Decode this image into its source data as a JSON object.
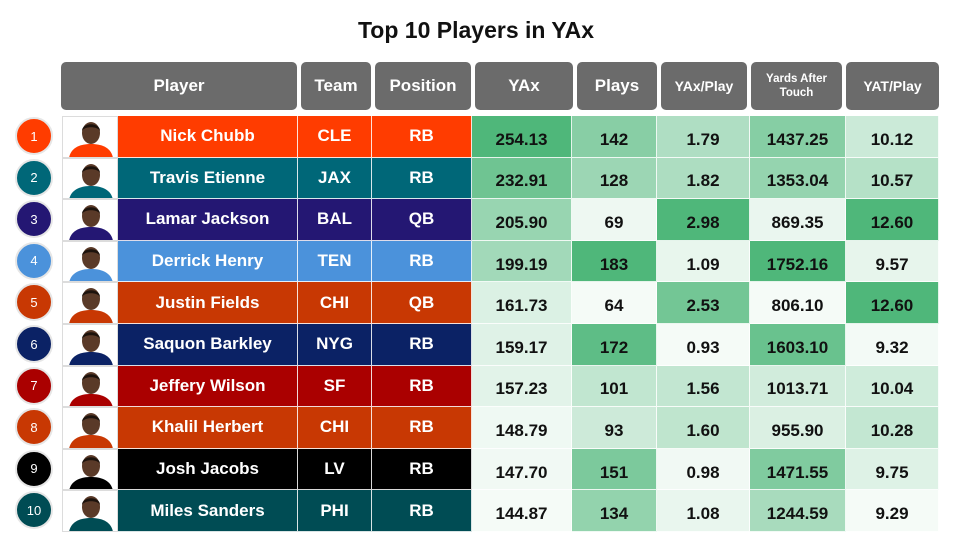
{
  "title": "Top 10 Players in YAx",
  "headers": {
    "player": "Player",
    "team": "Team",
    "position": "Position",
    "yax": "YAx",
    "plays": "Plays",
    "yax_play": "YAx/Play",
    "yat": "Yards After Touch",
    "yat_play": "YAT/Play"
  },
  "colors": {
    "header_bg": "#6b6b6b",
    "heat_low": "#f5fbf7",
    "heat_high": "#4fb77a"
  },
  "chart_data": {
    "type": "table",
    "title": "Top 10 Players in YAx",
    "columns": [
      "Player",
      "Team",
      "Position",
      "YAx",
      "Plays",
      "YAx/Play",
      "Yards After Touch",
      "YAT/Play"
    ],
    "rows": [
      {
        "rank": "1",
        "player": "Nick Chubb",
        "team": "CLE",
        "position": "RB",
        "yax": "254.13",
        "plays": "142",
        "yax_play": "1.79",
        "yat": "1437.25",
        "yat_play": "10.12",
        "team_color": "#ff3c00"
      },
      {
        "rank": "2",
        "player": "Travis Etienne",
        "team": "JAX",
        "position": "RB",
        "yax": "232.91",
        "plays": "128",
        "yax_play": "1.82",
        "yat": "1353.04",
        "yat_play": "10.57",
        "team_color": "#006778"
      },
      {
        "rank": "3",
        "player": "Lamar Jackson",
        "team": "BAL",
        "position": "QB",
        "yax": "205.90",
        "plays": "69",
        "yax_play": "2.98",
        "yat": "869.35",
        "yat_play": "12.60",
        "team_color": "#241773"
      },
      {
        "rank": "4",
        "player": "Derrick Henry",
        "team": "TEN",
        "position": "RB",
        "yax": "199.19",
        "plays": "183",
        "yax_play": "1.09",
        "yat": "1752.16",
        "yat_play": "9.57",
        "team_color": "#4b92db"
      },
      {
        "rank": "5",
        "player": "Justin Fields",
        "team": "CHI",
        "position": "QB",
        "yax": "161.73",
        "plays": "64",
        "yax_play": "2.53",
        "yat": "806.10",
        "yat_play": "12.60",
        "team_color": "#c83803"
      },
      {
        "rank": "6",
        "player": "Saquon Barkley",
        "team": "NYG",
        "position": "RB",
        "yax": "159.17",
        "plays": "172",
        "yax_play": "0.93",
        "yat": "1603.10",
        "yat_play": "9.32",
        "team_color": "#0b2265"
      },
      {
        "rank": "7",
        "player": "Jeffery Wilson",
        "team": "SF",
        "position": "RB",
        "yax": "157.23",
        "plays": "101",
        "yax_play": "1.56",
        "yat": "1013.71",
        "yat_play": "10.04",
        "team_color": "#aa0000"
      },
      {
        "rank": "8",
        "player": "Khalil Herbert",
        "team": "CHI",
        "position": "RB",
        "yax": "148.79",
        "plays": "93",
        "yax_play": "1.60",
        "yat": "955.90",
        "yat_play": "10.28",
        "team_color": "#c83803"
      },
      {
        "rank": "9",
        "player": "Josh Jacobs",
        "team": "LV",
        "position": "RB",
        "yax": "147.70",
        "plays": "151",
        "yax_play": "0.98",
        "yat": "1471.55",
        "yat_play": "9.75",
        "team_color": "#000000"
      },
      {
        "rank": "10",
        "player": "Miles Sanders",
        "team": "PHI",
        "position": "RB",
        "yax": "144.87",
        "plays": "134",
        "yax_play": "1.08",
        "yat": "1244.59",
        "yat_play": "9.29",
        "team_color": "#004c54"
      }
    ]
  }
}
